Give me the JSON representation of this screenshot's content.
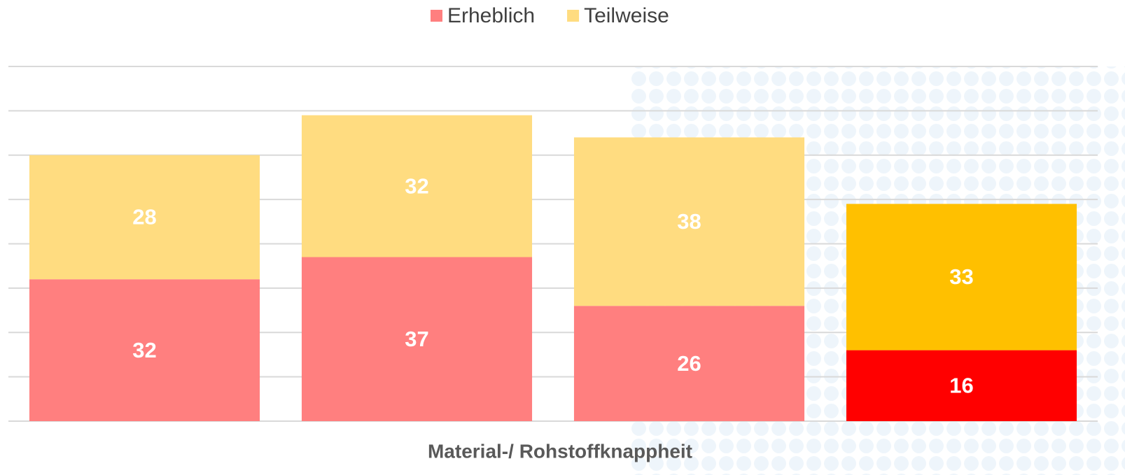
{
  "chart_data": {
    "type": "stacked_bar",
    "x_label": "Material-/ Rohstoffknappheit",
    "categories": [
      null,
      null,
      null,
      null
    ],
    "series": [
      {
        "name": "Erheblich",
        "color": "#ff7f7f",
        "colors": [
          "#ff7f7f",
          "#ff7f7f",
          "#ff7f7f",
          "#ff0000"
        ],
        "values": [
          32,
          37,
          26,
          16
        ]
      },
      {
        "name": "Teilweise",
        "color": "#ffdc80",
        "colors": [
          "#ffdc80",
          "#ffdc80",
          "#ffdc80",
          "#ffc000"
        ],
        "values": [
          28,
          32,
          38,
          33
        ]
      }
    ],
    "ylim": [
      0,
      80
    ],
    "yticks": [
      0,
      10,
      20,
      30,
      40,
      50,
      60,
      70,
      80
    ],
    "grid": true,
    "legend": "top"
  }
}
